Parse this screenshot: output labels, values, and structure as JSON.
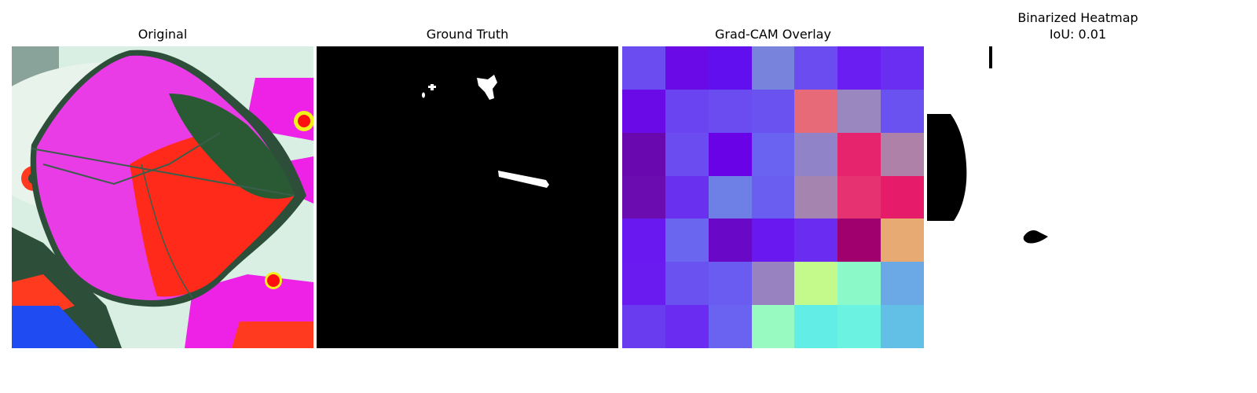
{
  "panels": {
    "original": {
      "title": "Original"
    },
    "ground_truth": {
      "title": "Ground Truth"
    },
    "gradcam": {
      "title": "Grad-CAM Overlay",
      "cells": [
        [
          "#6a4cf0",
          "#6a0ae6",
          "#620ff0",
          "#7884dc",
          "#6a4cf0",
          "#6a1ef2",
          "#6a2ef2"
        ],
        [
          "#6a0ae6",
          "#6a44f0",
          "#6a4cf0",
          "#6a52f0",
          "#e66a78",
          "#9b87c0",
          "#6a52f0"
        ],
        [
          "#6a08b0",
          "#6a4cf0",
          "#6a02e8",
          "#6a62f0",
          "#9183c8",
          "#e6246e",
          "#ae82a8"
        ],
        [
          "#6a0cb0",
          "#6a30f0",
          "#6e80e6",
          "#6a5ef0",
          "#a684b0",
          "#e63270",
          "#e61c6a"
        ],
        [
          "#6a18f0",
          "#6a66f0",
          "#6a08c8",
          "#6a18f0",
          "#6a2cf0",
          "#a0006e",
          "#e6aa72"
        ],
        [
          "#6a1cf0",
          "#6a52f0",
          "#6a5cf0",
          "#9882c0",
          "#c4fa8c",
          "#8cfac8",
          "#6aa8e6"
        ],
        [
          "#6a3cf0",
          "#6a2cf0",
          "#6a62f0",
          "#98fac0",
          "#62eee6",
          "#6cf2e0",
          "#62c0e6"
        ]
      ]
    },
    "binarized": {
      "title": "Binarized Heatmap",
      "subtitle": "IoU: 0.01"
    }
  },
  "colors": {
    "background": "#ffffff",
    "mask_fg": "#ffffff",
    "mask_bg": "#000000"
  }
}
